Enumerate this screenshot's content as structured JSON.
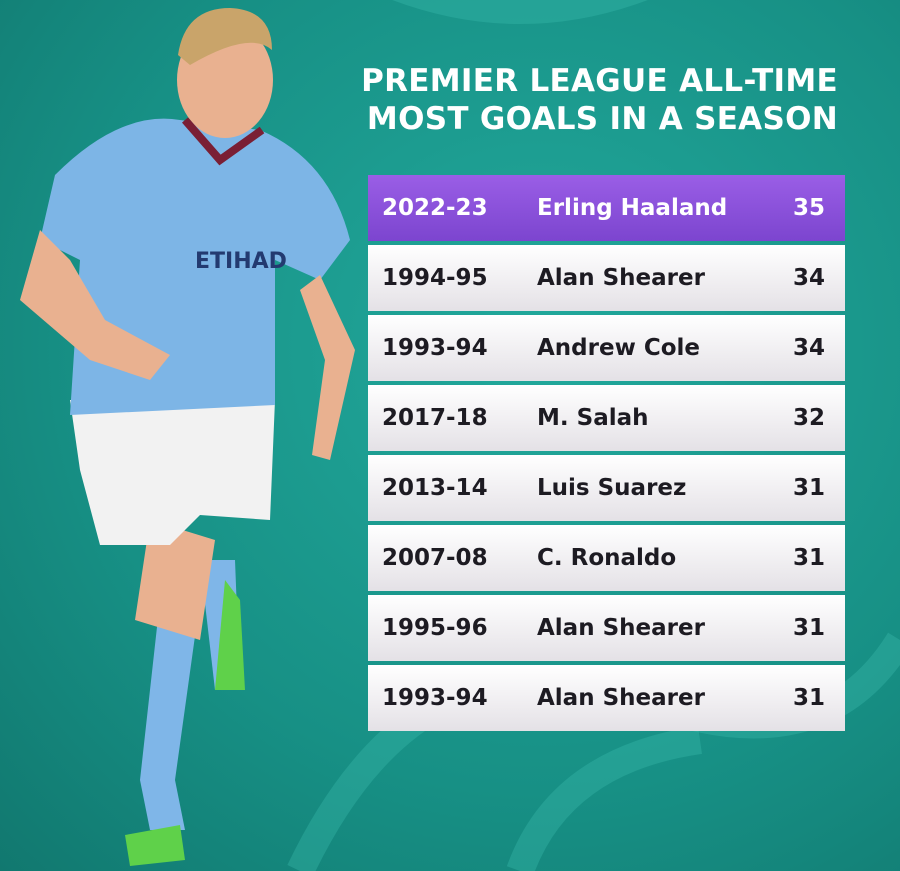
{
  "header": {
    "title_lines": [
      "PREMIER LEAGUE ALL-TIME",
      "MOST GOALS IN A SEASON"
    ]
  },
  "table": {
    "rows": [
      [
        "2022-23",
        "Erling Haaland",
        35
      ],
      [
        "1994-95",
        "Alan Shearer",
        34
      ],
      [
        "1993-94",
        "Andrew Cole",
        34
      ],
      [
        "2017-18",
        "M. Salah",
        32
      ],
      [
        "2013-14",
        "Luis Suarez",
        31
      ],
      [
        "2007-08",
        "C. Ronaldo",
        31
      ],
      [
        "1995-96",
        "Alan Shearer",
        31
      ],
      [
        "1993-94",
        "Alan Shearer",
        31
      ]
    ]
  }
}
